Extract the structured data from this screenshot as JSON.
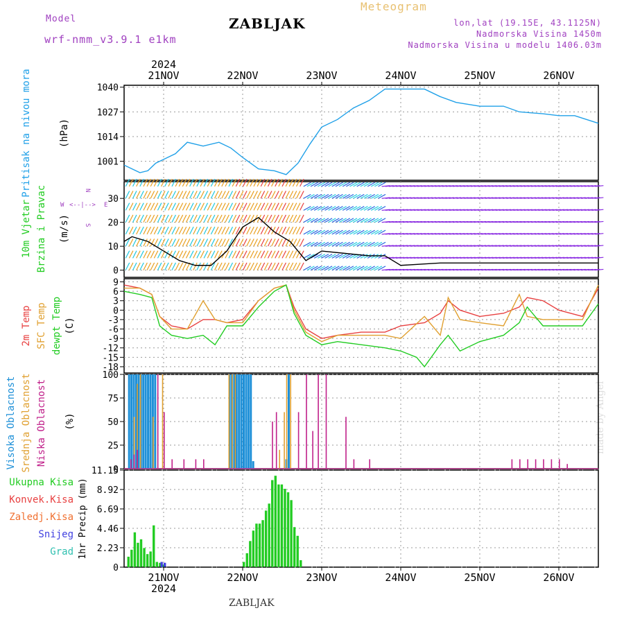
{
  "header": {
    "model_label": "Model",
    "model_name": "wrf-nmm_v3.9.1 e1km",
    "title": "ZABLJAK",
    "meteogram": "Meteogram",
    "lonlat": "lon,lat (19.15E, 43.1125N)",
    "altitude": "Nadmorska Visina 1450m",
    "model_altitude": "Nadmorska Visina u modelu 1406.03m",
    "footer_title": "ZABLJAK",
    "watermark": "made by Angel"
  },
  "time_axis": {
    "year": "2024",
    "ticks": [
      "21NOV",
      "22NOV",
      "23NOV",
      "24NOV",
      "25NOV",
      "26NOV"
    ],
    "start_day": 20.5,
    "end_day": 26.5
  },
  "colors": {
    "pressure": "#1fa0e8",
    "temp2m": "#e84040",
    "sfc": "#e0a030",
    "dewpt": "#22cc22",
    "high_cloud": "#1e90d8",
    "mid_cloud": "#e0a030",
    "low_cloud": "#c0208a",
    "wind_a": "#8a2be2",
    "wind_b": "#1ec8e0",
    "wind_c": "#e8a020"
  },
  "panel_labels": {
    "pressure": [
      "Pritisak na nivou mora",
      "(hPa)"
    ],
    "wind": [
      "10m Vjetar",
      "Brzina i Pravac",
      "(m/s)"
    ],
    "wind_compass": [
      "W",
      "<--|-->",
      "E"
    ],
    "wind_compass_v": [
      "N",
      "S"
    ],
    "temp": [
      "2m Temp",
      "SFC Temp",
      "dewpt Temp",
      "(C)"
    ],
    "cloud": [
      "Visoka Oblacnost",
      "Srednja Oblacnost",
      "Niska Oblacnost",
      "(%)"
    ],
    "precip_axis": "1hr Precip (mm)",
    "precip_legend": [
      "Ukupna Kisa",
      "Konvek.Kisa",
      "Zaledj.Kisa",
      "Snijeg",
      "Grad"
    ],
    "precip_legend_colors": [
      "#22cc22",
      "#e84040",
      "#f07030",
      "#4040e0",
      "#30c0b0"
    ]
  },
  "chart_data": [
    {
      "type": "line",
      "title": "Pritisak na nivou mora",
      "ylabel": "(hPa)",
      "yticks": [
        1001,
        1014,
        1027,
        1040
      ],
      "ylim": [
        991,
        1041
      ],
      "grid": true,
      "series": [
        {
          "name": "Pritisak na nivou mora",
          "x": [
            20.5,
            20.7,
            20.8,
            20.9,
            21.0,
            21.15,
            21.3,
            21.5,
            21.7,
            21.85,
            22.0,
            22.2,
            22.4,
            22.55,
            22.7,
            22.85,
            23.0,
            23.2,
            23.4,
            23.6,
            23.8,
            24.0,
            24.3,
            24.5,
            24.7,
            25.0,
            25.3,
            25.5,
            25.8,
            26.0,
            26.2,
            26.5
          ],
          "y": [
            999,
            995,
            996,
            1000,
            1002,
            1005,
            1011,
            1009,
            1011,
            1008,
            1003,
            997,
            996,
            994,
            1000,
            1010,
            1019,
            1023,
            1029,
            1033,
            1039,
            1039,
            1039,
            1035,
            1032,
            1030,
            1030,
            1027,
            1026,
            1025,
            1025,
            1021
          ]
        }
      ]
    },
    {
      "type": "line",
      "title": "10m Vjetar Brzina i Pravac",
      "ylabel": "(m/s)",
      "yticks": [
        0,
        10,
        20,
        30
      ],
      "ylim": [
        -3,
        37
      ],
      "grid": true,
      "series": [
        {
          "name": "10m Vjetar",
          "x": [
            20.5,
            20.6,
            20.8,
            21.0,
            21.2,
            21.4,
            21.6,
            21.8,
            22.0,
            22.2,
            22.4,
            22.6,
            22.8,
            23.0,
            23.3,
            23.6,
            23.8,
            24.0,
            24.5,
            25.0,
            25.5,
            26.0,
            26.5
          ],
          "y": [
            12,
            14,
            12,
            8,
            4,
            2,
            2,
            8,
            18,
            22,
            16,
            12,
            4,
            8,
            7,
            6,
            6,
            2,
            3,
            3,
            3,
            3,
            3
          ]
        }
      ]
    },
    {
      "type": "line",
      "title": "Temp",
      "ylabel": "(C)",
      "yticks": [
        9,
        6,
        3,
        0,
        -3,
        -6,
        -9,
        -12,
        -15,
        -18
      ],
      "ylim": [
        -20,
        10
      ],
      "grid": true,
      "series": [
        {
          "name": "2m Temp",
          "x": [
            20.5,
            20.7,
            20.85,
            20.95,
            21.1,
            21.3,
            21.5,
            21.65,
            21.8,
            22.0,
            22.2,
            22.4,
            22.55,
            22.65,
            22.8,
            23.0,
            23.2,
            23.5,
            23.8,
            24.0,
            24.3,
            24.5,
            24.6,
            24.75,
            25.0,
            25.3,
            25.5,
            25.6,
            25.8,
            26.0,
            26.3,
            26.5
          ],
          "y": [
            8,
            7,
            5,
            -2,
            -5,
            -6,
            -3,
            -3,
            -4,
            -3,
            3,
            7,
            8,
            1,
            -6,
            -9,
            -8,
            -7,
            -7,
            -5,
            -4,
            -1,
            3,
            0,
            -2,
            -1,
            1,
            4,
            3,
            0,
            -2,
            7
          ]
        },
        {
          "name": "SFC Temp",
          "x": [
            20.5,
            20.7,
            20.85,
            20.95,
            21.1,
            21.3,
            21.5,
            21.65,
            21.8,
            22.0,
            22.2,
            22.4,
            22.55,
            22.65,
            22.8,
            23.0,
            23.2,
            23.5,
            23.8,
            24.0,
            24.3,
            24.5,
            24.6,
            24.75,
            25.0,
            25.3,
            25.5,
            25.6,
            25.8,
            26.0,
            26.3,
            26.5
          ],
          "y": [
            7,
            7,
            5,
            -2,
            -6,
            -6,
            3,
            -3,
            -4,
            -4,
            3,
            7,
            8,
            0,
            -7,
            -10,
            -8,
            -8,
            -8,
            -9,
            -2,
            -8,
            4,
            -3,
            -4,
            -5,
            5,
            -2,
            -3,
            -3,
            -3,
            8
          ]
        },
        {
          "name": "dewpt Temp",
          "x": [
            20.5,
            20.7,
            20.85,
            20.95,
            21.1,
            21.3,
            21.5,
            21.65,
            21.8,
            22.0,
            22.2,
            22.4,
            22.55,
            22.65,
            22.8,
            23.0,
            23.2,
            23.5,
            23.8,
            24.0,
            24.2,
            24.3,
            24.5,
            24.6,
            24.75,
            25.0,
            25.3,
            25.5,
            25.6,
            25.8,
            26.0,
            26.3,
            26.5
          ],
          "y": [
            6,
            5,
            4,
            -5,
            -8,
            -9,
            -8,
            -11,
            -5,
            -5,
            1,
            6,
            8,
            -1,
            -8,
            -11,
            -10,
            -11,
            -12,
            -13,
            -15,
            -18,
            -11,
            -8,
            -13,
            -10,
            -8,
            -4,
            1,
            -5,
            -5,
            -5,
            2
          ]
        }
      ]
    },
    {
      "type": "bar",
      "title": "Oblacnost",
      "ylabel": "(%)",
      "yticks": [
        0,
        25,
        50,
        75,
        100
      ],
      "ylim": [
        0,
        100
      ],
      "grid": true,
      "series": [
        {
          "name": "Visoka Oblacnost",
          "x": [
            20.55,
            20.58,
            20.61,
            20.64,
            20.67,
            20.7,
            20.73,
            20.76,
            20.79,
            20.82,
            20.85,
            20.88,
            21.82,
            21.85,
            21.88,
            21.91,
            21.94,
            21.97,
            22.0,
            22.03,
            22.06,
            22.09,
            22.12,
            22.54,
            22.57
          ],
          "values": [
            100,
            100,
            100,
            100,
            100,
            100,
            100,
            100,
            100,
            100,
            100,
            100,
            100,
            100,
            100,
            100,
            100,
            100,
            100,
            100,
            100,
            100,
            8,
            10,
            100
          ]
        },
        {
          "name": "Srednja Oblacnost",
          "x": [
            20.62,
            20.66,
            20.7,
            20.86,
            20.92,
            20.98,
            21.82,
            21.86,
            21.9,
            22.46,
            22.52,
            22.55,
            22.6
          ],
          "values": [
            55,
            90,
            100,
            55,
            80,
            100,
            100,
            100,
            100,
            20,
            60,
            100,
            100
          ]
        },
        {
          "name": "Niska Oblacnost",
          "x": [
            20.58,
            20.62,
            20.66,
            20.92,
            21.0,
            21.1,
            21.25,
            21.4,
            21.5,
            22.37,
            22.42,
            22.7,
            22.8,
            22.88,
            22.95,
            23.05,
            23.3,
            23.4,
            23.6,
            25.4,
            25.5,
            25.6,
            25.7,
            25.8,
            25.9,
            26.0,
            26.1
          ],
          "values": [
            10,
            15,
            20,
            100,
            60,
            10,
            10,
            10,
            10,
            50,
            60,
            60,
            100,
            40,
            100,
            100,
            55,
            10,
            10,
            10,
            10,
            10,
            10,
            10,
            10,
            10,
            5
          ]
        }
      ]
    },
    {
      "type": "bar",
      "title": "1hr Precip",
      "ylabel": "1hr Precip (mm)",
      "yticks": [
        0,
        2.23,
        4.46,
        6.69,
        8.92,
        11.15
      ],
      "ylim": [
        0,
        11.15
      ],
      "grid": true,
      "series": [
        {
          "name": "Ukupna Kisa",
          "x": [
            20.54,
            20.58,
            20.62,
            20.66,
            20.7,
            20.74,
            20.78,
            20.82,
            20.86,
            20.9,
            20.94,
            20.98,
            22.0,
            22.04,
            22.08,
            22.12,
            22.16,
            22.2,
            22.24,
            22.28,
            22.32,
            22.36,
            22.4,
            22.44,
            22.48,
            22.52,
            22.56,
            22.6,
            22.64,
            22.68,
            22.72
          ],
          "values": [
            1.2,
            2.0,
            4.0,
            2.8,
            3.2,
            2.2,
            1.5,
            1.8,
            4.8,
            0.6,
            0.5,
            0.3,
            0.6,
            1.6,
            3.0,
            4.2,
            5.0,
            5.0,
            5.4,
            6.5,
            7.3,
            10.0,
            10.5,
            9.5,
            9.5,
            9.0,
            8.6,
            7.7,
            4.6,
            3.6,
            0.8
          ]
        },
        {
          "name": "Konvek.Kisa",
          "x": [],
          "values": []
        },
        {
          "name": "Zaledj.Kisa",
          "x": [],
          "values": []
        },
        {
          "name": "Snijeg",
          "x": [
            20.96,
            21.0
          ],
          "values": [
            0.6,
            0.5
          ]
        },
        {
          "name": "Grad",
          "x": [],
          "values": []
        }
      ]
    }
  ]
}
